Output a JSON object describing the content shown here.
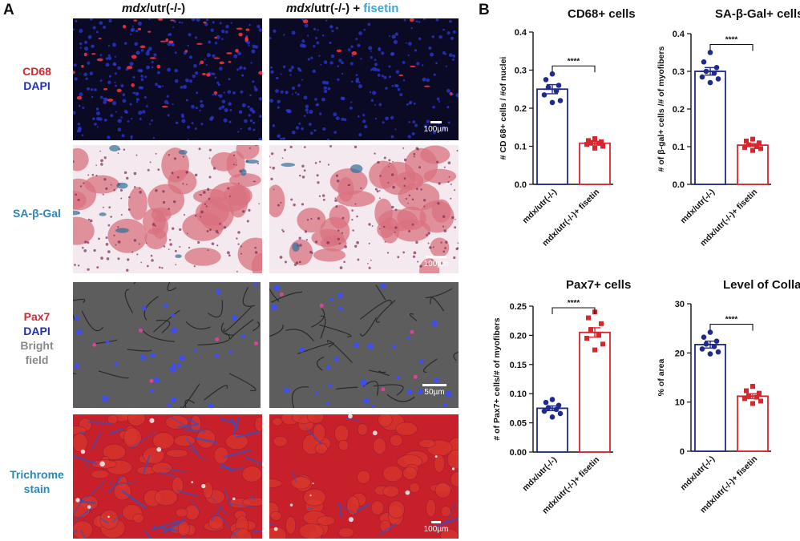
{
  "panel_a": {
    "letter": "A",
    "col_left": {
      "strain": "mdx",
      "suffix": "/utr(-/-)"
    },
    "col_right": {
      "strain": "mdx",
      "suffix": "/utr(-/-) + ",
      "treatment": "fisetin"
    },
    "rows": [
      {
        "lines": [
          {
            "text": "CD68",
            "color": "#d7262e"
          },
          {
            "text": "DAPI",
            "color": "#1f2fb4"
          }
        ]
      },
      {
        "lines": [
          {
            "text": "SA-β-Gal",
            "color": "#2f86b8"
          }
        ]
      },
      {
        "lines": [
          {
            "text": "Pax7",
            "color": "#d7262e"
          },
          {
            "text": "DAPI",
            "color": "#1f2fb4"
          },
          {
            "text": "Bright",
            "color": "#8a8a8a"
          },
          {
            "text": "field",
            "color": "#8a8a8a"
          }
        ]
      },
      {
        "lines": [
          {
            "text": "Trichrome",
            "color": "#2f86b8"
          },
          {
            "text": "stain",
            "color": "#2f86b8"
          }
        ]
      }
    ],
    "scale_bars": [
      "100µm",
      "100µm",
      "50µm",
      "100µm"
    ]
  },
  "panel_b": {
    "letter": "B"
  },
  "colors": {
    "control": "#1f2a8c",
    "fisetin": "#d7262e",
    "fisetin_text": "#39a7d9"
  },
  "chart_data": [
    {
      "type": "bar",
      "title": "CD68+ cells",
      "ylabel": "# CD 68+ cells / #of nuclei",
      "categories": [
        "mdx/utr(-/-)",
        "mdx/utr(-/-)+ fisetin"
      ],
      "values": [
        0.25,
        0.108
      ],
      "sem": [
        0.012,
        0.005
      ],
      "points": [
        [
          0.29,
          0.275,
          0.26,
          0.255,
          0.245,
          0.235,
          0.22,
          0.215
        ],
        [
          0.12,
          0.115,
          0.112,
          0.11,
          0.108,
          0.105,
          0.1,
          0.095
        ]
      ],
      "ylim": [
        0,
        0.4
      ],
      "yticks": [
        0.0,
        0.1,
        0.2,
        0.3,
        0.4
      ],
      "yticklabels": [
        "0.0",
        "0.1",
        "0.2",
        "0.3",
        "0.4"
      ],
      "significance": "****"
    },
    {
      "type": "bar",
      "title": "SA-β-Gal+ cells",
      "ylabel": "# of β-gal+ cells /# of myofibers",
      "categories": [
        "mdx/utr(-/-)",
        "mdx/utr(-/-)+ fisetin"
      ],
      "values": [
        0.3,
        0.104
      ],
      "sem": [
        0.01,
        0.004
      ],
      "points": [
        [
          0.35,
          0.325,
          0.31,
          0.3,
          0.295,
          0.285,
          0.28,
          0.27
        ],
        [
          0.12,
          0.115,
          0.11,
          0.105,
          0.1,
          0.098,
          0.095,
          0.09
        ]
      ],
      "ylim": [
        0,
        0.4
      ],
      "yticks": [
        0.0,
        0.1,
        0.2,
        0.3,
        0.4
      ],
      "yticklabels": [
        "0.0",
        "0.1",
        "0.2",
        "0.3",
        "0.4"
      ],
      "significance": "****"
    },
    {
      "type": "bar",
      "title": "Pax7+ cells",
      "ylabel": "# of Pax7+ cells/# of myofibers",
      "categories": [
        "mdx/utr(-/-)",
        "mdx/utr(-/-)+ fisetin"
      ],
      "values": [
        0.075,
        0.205
      ],
      "sem": [
        0.004,
        0.008
      ],
      "points": [
        [
          0.09,
          0.085,
          0.08,
          0.076,
          0.073,
          0.07,
          0.066,
          0.06
        ],
        [
          0.24,
          0.23,
          0.22,
          0.21,
          0.2,
          0.195,
          0.185,
          0.175
        ]
      ],
      "ylim": [
        0,
        0.25
      ],
      "yticks": [
        0.0,
        0.05,
        0.1,
        0.15,
        0.2,
        0.25
      ],
      "yticklabels": [
        "0.00",
        "0.05",
        "0.10",
        "0.15",
        "0.20",
        "0.25"
      ],
      "significance": "****"
    },
    {
      "type": "bar",
      "title": "Level of Collagen I",
      "ylabel": "% of area",
      "categories": [
        "mdx/utr(-/-)",
        "mdx/utr(-/-)+ fisetin"
      ],
      "values": [
        21.7,
        11.2
      ],
      "sem": [
        0.7,
        0.5
      ],
      "points": [
        [
          24.2,
          23.2,
          22.4,
          21.8,
          21.3,
          20.8,
          20.2,
          19.8
        ],
        [
          13.2,
          12.3,
          11.8,
          11.3,
          11.0,
          10.7,
          10.2,
          9.7
        ]
      ],
      "ylim": [
        0,
        30
      ],
      "yticks": [
        0,
        10,
        20,
        30
      ],
      "yticklabels": [
        "0",
        "10",
        "20",
        "30"
      ],
      "significance": "****"
    }
  ]
}
